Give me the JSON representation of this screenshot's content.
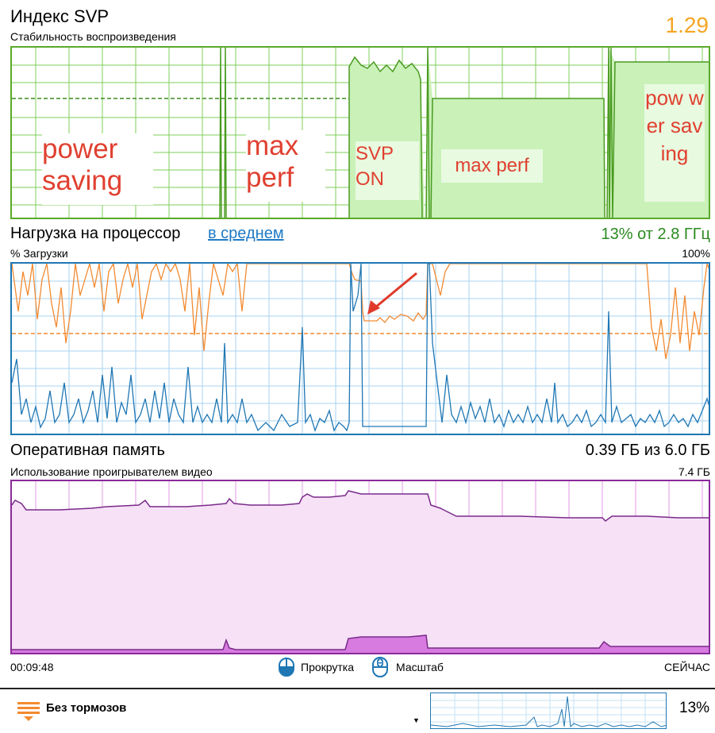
{
  "svp": {
    "title": "Индекс SVP",
    "subtitle": "Стабильность воспроизведения",
    "value": "1.29",
    "annotations": {
      "power_saving": "power saving",
      "max_perf_1": "max perf",
      "svp_on": "SVP ON",
      "max_perf_2": "max perf",
      "power_saving_2": "pow wer sav ing"
    }
  },
  "cpu": {
    "title": "Нагрузка на процессор",
    "mode_link": "в среднем",
    "summary": "13% от 2.8 ГГц",
    "axis_label": "% Загрузки",
    "axis_max": "100%"
  },
  "ram": {
    "title": "Оперативная память",
    "summary": "0.39 ГБ из 6.0 ГБ",
    "subtitle": "Использование проигрывателем видео",
    "axis_max": "7.4 ГБ"
  },
  "timeline": {
    "start_time": "00:09:48",
    "scroll_label": "Прокрутка",
    "zoom_label": "Масштаб",
    "now_label": "СЕЙЧАС"
  },
  "footer": {
    "profile_label": "Без тормозов",
    "cpu_percent": "13%"
  },
  "colors": {
    "svp_green": "#5aaa2a",
    "svp_fill": "#c9f1b8",
    "cpu_blue": "#1f77b4",
    "cpu_orange": "#f28a30",
    "ram_purple": "#7a2a8a",
    "ram_fill": "#f4dcf5",
    "value_orange": "#f5a623",
    "arrow_red": "#e03a2a"
  }
}
